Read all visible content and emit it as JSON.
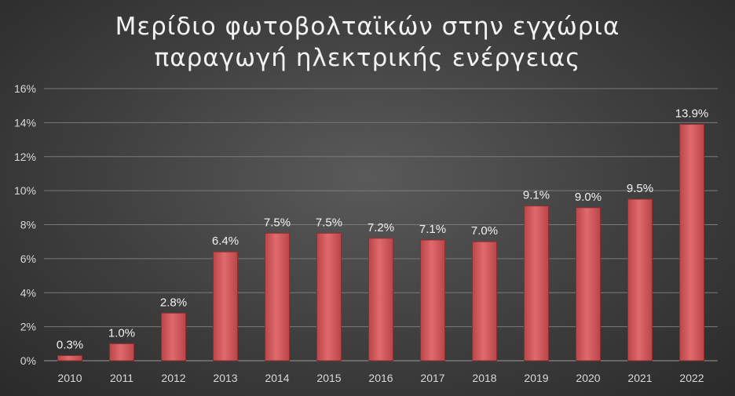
{
  "chart_data": {
    "type": "bar",
    "title_lines": [
      "Μερίδιο φωτοβολταϊκών στην εγχώρια",
      "παραγωγή ηλεκτρικής ενέργειας"
    ],
    "categories": [
      "2010",
      "2011",
      "2012",
      "2013",
      "2014",
      "2015",
      "2016",
      "2017",
      "2018",
      "2019",
      "2020",
      "2021",
      "2022"
    ],
    "values": [
      0.3,
      1.0,
      2.8,
      6.4,
      7.5,
      7.5,
      7.2,
      7.1,
      7.0,
      9.1,
      9.0,
      9.5,
      13.9
    ],
    "data_labels": [
      "0.3%",
      "1.0%",
      "2.8%",
      "6.4%",
      "7.5%",
      "7.5%",
      "7.2%",
      "7.1%",
      "7.0%",
      "9.1%",
      "9.0%",
      "9.5%",
      "13.9%"
    ],
    "ylim": [
      0,
      16
    ],
    "yticks": [
      0,
      2,
      4,
      6,
      8,
      10,
      12,
      14,
      16
    ],
    "ytick_labels": [
      "0%",
      "2%",
      "4%",
      "6%",
      "8%",
      "10%",
      "12%",
      "14%",
      "16%"
    ],
    "grid": true,
    "bar_color": "#d65b5e",
    "bar_edge_color": "#8e2e31"
  }
}
